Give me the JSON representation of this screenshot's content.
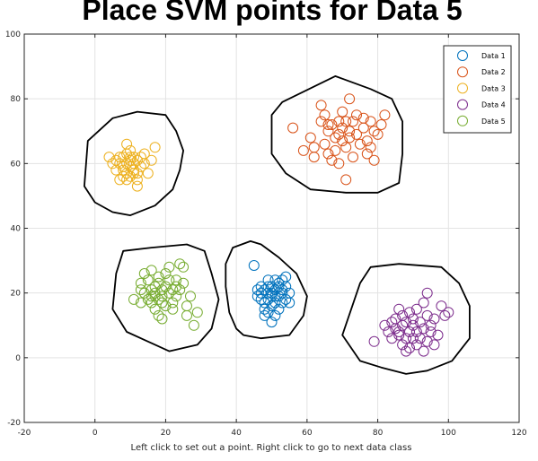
{
  "chart_data": {
    "type": "scatter",
    "title": "Place SVM points for Data 5",
    "xlabel": "Left click to set out a point. Right click to go to next data class",
    "ylabel": "",
    "xlim": [
      -20,
      120
    ],
    "ylim": [
      -20,
      100
    ],
    "xticks": [
      -20,
      0,
      20,
      40,
      60,
      80,
      100,
      120
    ],
    "yticks": [
      -20,
      0,
      20,
      40,
      60,
      80,
      100
    ],
    "grid": true,
    "legend_position": "top-right",
    "series": [
      {
        "name": "Data 1",
        "color": "#0072bd",
        "points": [
          [
            45,
            28.5
          ],
          [
            47,
            20
          ],
          [
            48,
            21
          ],
          [
            49,
            22
          ],
          [
            50,
            20
          ],
          [
            51,
            21
          ],
          [
            52,
            19
          ],
          [
            53,
            21
          ],
          [
            49,
            18
          ],
          [
            48,
            17
          ],
          [
            50,
            16
          ],
          [
            51,
            17
          ],
          [
            52,
            23
          ],
          [
            50,
            22
          ],
          [
            53,
            24
          ],
          [
            54,
            22
          ],
          [
            55,
            20
          ],
          [
            54,
            18
          ],
          [
            53,
            17
          ],
          [
            52,
            15
          ],
          [
            51,
            13
          ],
          [
            49,
            14
          ],
          [
            48,
            13
          ],
          [
            47,
            18
          ],
          [
            46,
            21
          ],
          [
            49,
            24
          ],
          [
            51,
            24
          ],
          [
            55,
            17
          ],
          [
            50,
            11
          ],
          [
            48,
            15
          ],
          [
            53,
            20
          ],
          [
            47,
            22
          ],
          [
            50,
            19
          ],
          [
            54,
            25
          ],
          [
            46,
            19
          ],
          [
            52,
            22
          ],
          [
            49,
            20
          ],
          [
            51,
            19
          ]
        ]
      },
      {
        "name": "Data 2",
        "color": "#d95319",
        "points": [
          [
            56,
            71
          ],
          [
            59,
            64
          ],
          [
            61,
            68
          ],
          [
            62,
            65
          ],
          [
            62,
            62
          ],
          [
            64,
            73
          ],
          [
            64,
            78
          ],
          [
            65,
            75
          ],
          [
            65,
            66
          ],
          [
            66,
            70
          ],
          [
            66,
            63
          ],
          [
            67,
            61
          ],
          [
            67,
            72
          ],
          [
            68,
            68
          ],
          [
            68,
            64
          ],
          [
            69,
            73
          ],
          [
            69,
            69
          ],
          [
            70,
            76
          ],
          [
            70,
            71
          ],
          [
            70,
            67
          ],
          [
            71,
            65
          ],
          [
            71,
            73
          ],
          [
            72,
            70
          ],
          [
            72,
            68
          ],
          [
            72,
            80
          ],
          [
            73,
            73
          ],
          [
            73,
            62
          ],
          [
            74,
            75
          ],
          [
            74,
            69
          ],
          [
            75,
            66
          ],
          [
            76,
            71
          ],
          [
            77,
            67
          ],
          [
            77,
            63
          ],
          [
            78,
            73
          ],
          [
            79,
            70
          ],
          [
            80,
            69
          ],
          [
            81,
            72
          ],
          [
            82,
            75
          ],
          [
            79,
            61
          ],
          [
            71,
            55
          ],
          [
            69,
            60
          ],
          [
            66,
            72
          ],
          [
            76,
            74
          ],
          [
            78,
            65
          ]
        ]
      },
      {
        "name": "Data 3",
        "color": "#edb120",
        "points": [
          [
            4,
            62
          ],
          [
            5,
            60
          ],
          [
            6,
            58
          ],
          [
            6,
            61
          ],
          [
            7,
            55
          ],
          [
            7,
            60
          ],
          [
            8,
            58
          ],
          [
            8,
            62
          ],
          [
            8,
            56
          ],
          [
            9,
            57
          ],
          [
            9,
            60
          ],
          [
            9,
            63
          ],
          [
            9,
            66
          ],
          [
            10,
            61
          ],
          [
            10,
            59
          ],
          [
            10,
            56
          ],
          [
            10,
            64
          ],
          [
            11,
            58
          ],
          [
            11,
            62
          ],
          [
            11,
            60
          ],
          [
            12,
            57
          ],
          [
            12,
            61
          ],
          [
            12,
            55
          ],
          [
            12,
            53
          ],
          [
            13,
            59
          ],
          [
            13,
            62
          ],
          [
            14,
            60
          ],
          [
            14,
            63
          ],
          [
            15,
            57
          ],
          [
            16,
            61
          ],
          [
            17,
            65
          ],
          [
            7,
            62
          ],
          [
            9,
            55
          ],
          [
            11,
            57
          ],
          [
            10,
            62
          ],
          [
            8,
            59
          ]
        ]
      },
      {
        "name": "Data 4",
        "color": "#7e2f8e",
        "points": [
          [
            79,
            5
          ],
          [
            82,
            10
          ],
          [
            83,
            8
          ],
          [
            84,
            11
          ],
          [
            84,
            6
          ],
          [
            85,
            12
          ],
          [
            85,
            9
          ],
          [
            86,
            7
          ],
          [
            86,
            15
          ],
          [
            87,
            10
          ],
          [
            87,
            4
          ],
          [
            87,
            13
          ],
          [
            88,
            6
          ],
          [
            88,
            11
          ],
          [
            89,
            8
          ],
          [
            89,
            14
          ],
          [
            89,
            3
          ],
          [
            90,
            10
          ],
          [
            90,
            6
          ],
          [
            90,
            12
          ],
          [
            91,
            4
          ],
          [
            91,
            8
          ],
          [
            91,
            15
          ],
          [
            92,
            11
          ],
          [
            92,
            6
          ],
          [
            93,
            9
          ],
          [
            93,
            17
          ],
          [
            93,
            2
          ],
          [
            94,
            13
          ],
          [
            94,
            5
          ],
          [
            95,
            10
          ],
          [
            95,
            8
          ],
          [
            96,
            4
          ],
          [
            96,
            12
          ],
          [
            97,
            7
          ],
          [
            98,
            16
          ],
          [
            99,
            13
          ],
          [
            100,
            14
          ],
          [
            94,
            20
          ],
          [
            88,
            2
          ],
          [
            86,
            8
          ]
        ]
      },
      {
        "name": "Data 5",
        "color": "#77ac30",
        "points": [
          [
            11,
            18
          ],
          [
            13,
            17
          ],
          [
            13,
            21
          ],
          [
            13,
            23
          ],
          [
            14,
            20
          ],
          [
            14,
            26
          ],
          [
            15,
            24
          ],
          [
            15,
            18
          ],
          [
            16,
            21
          ],
          [
            16,
            17
          ],
          [
            16,
            27
          ],
          [
            17,
            22
          ],
          [
            17,
            19
          ],
          [
            17,
            15
          ],
          [
            17,
            20
          ],
          [
            18,
            18
          ],
          [
            18,
            23
          ],
          [
            18,
            13
          ],
          [
            18,
            25
          ],
          [
            19,
            21
          ],
          [
            19,
            17
          ],
          [
            19,
            12
          ],
          [
            20,
            22
          ],
          [
            20,
            16
          ],
          [
            20,
            26
          ],
          [
            21,
            24
          ],
          [
            21,
            28
          ],
          [
            21,
            20
          ],
          [
            22,
            21
          ],
          [
            22,
            17
          ],
          [
            22,
            15
          ],
          [
            23,
            22
          ],
          [
            23,
            19
          ],
          [
            23,
            24
          ],
          [
            24,
            29
          ],
          [
            24,
            21
          ],
          [
            25,
            23
          ],
          [
            25,
            28
          ],
          [
            26,
            16
          ],
          [
            26,
            13
          ],
          [
            27,
            19
          ],
          [
            28,
            10
          ],
          [
            29,
            14
          ],
          [
            16,
            19
          ],
          [
            19,
            19
          ]
        ]
      }
    ],
    "hulls": [
      [
        [
          42,
          7
        ],
        [
          47,
          6
        ],
        [
          55,
          7
        ],
        [
          59,
          13
        ],
        [
          60,
          19
        ],
        [
          57,
          26
        ],
        [
          52,
          31
        ],
        [
          47,
          35
        ],
        [
          44,
          36
        ],
        [
          39,
          34
        ],
        [
          37,
          29
        ],
        [
          37,
          22
        ],
        [
          38,
          14
        ],
        [
          40,
          9
        ]
      ],
      [
        [
          70,
          7
        ],
        [
          75,
          -1
        ],
        [
          81,
          -3
        ],
        [
          88,
          -5
        ],
        [
          94,
          -4
        ],
        [
          101,
          -1
        ],
        [
          106,
          6
        ],
        [
          106,
          16
        ],
        [
          103,
          23
        ],
        [
          98,
          28
        ],
        [
          86,
          29
        ],
        [
          78,
          28
        ],
        [
          75,
          23
        ]
      ],
      [
        [
          21,
          2
        ],
        [
          29,
          4
        ],
        [
          33,
          9
        ],
        [
          35,
          18
        ],
        [
          33,
          26
        ],
        [
          31,
          33
        ],
        [
          26,
          35
        ],
        [
          16,
          34
        ],
        [
          8,
          33
        ],
        [
          6,
          26
        ],
        [
          5,
          15
        ],
        [
          9,
          8
        ],
        [
          15,
          5
        ]
      ],
      [
        [
          10,
          44
        ],
        [
          5,
          45
        ],
        [
          0,
          48
        ],
        [
          -3,
          53
        ],
        [
          -2,
          67
        ],
        [
          5,
          74
        ],
        [
          12,
          76
        ],
        [
          20,
          75
        ],
        [
          23,
          70
        ],
        [
          25,
          64
        ],
        [
          24,
          58
        ],
        [
          22,
          52
        ],
        [
          17,
          47
        ]
      ],
      [
        [
          61,
          52
        ],
        [
          71,
          51
        ],
        [
          80,
          51
        ],
        [
          86,
          54
        ],
        [
          87,
          63
        ],
        [
          87,
          73
        ],
        [
          84,
          80
        ],
        [
          78,
          83
        ],
        [
          68,
          87
        ],
        [
          53,
          79
        ],
        [
          50,
          75
        ],
        [
          50,
          63
        ],
        [
          54,
          57
        ]
      ]
    ]
  }
}
